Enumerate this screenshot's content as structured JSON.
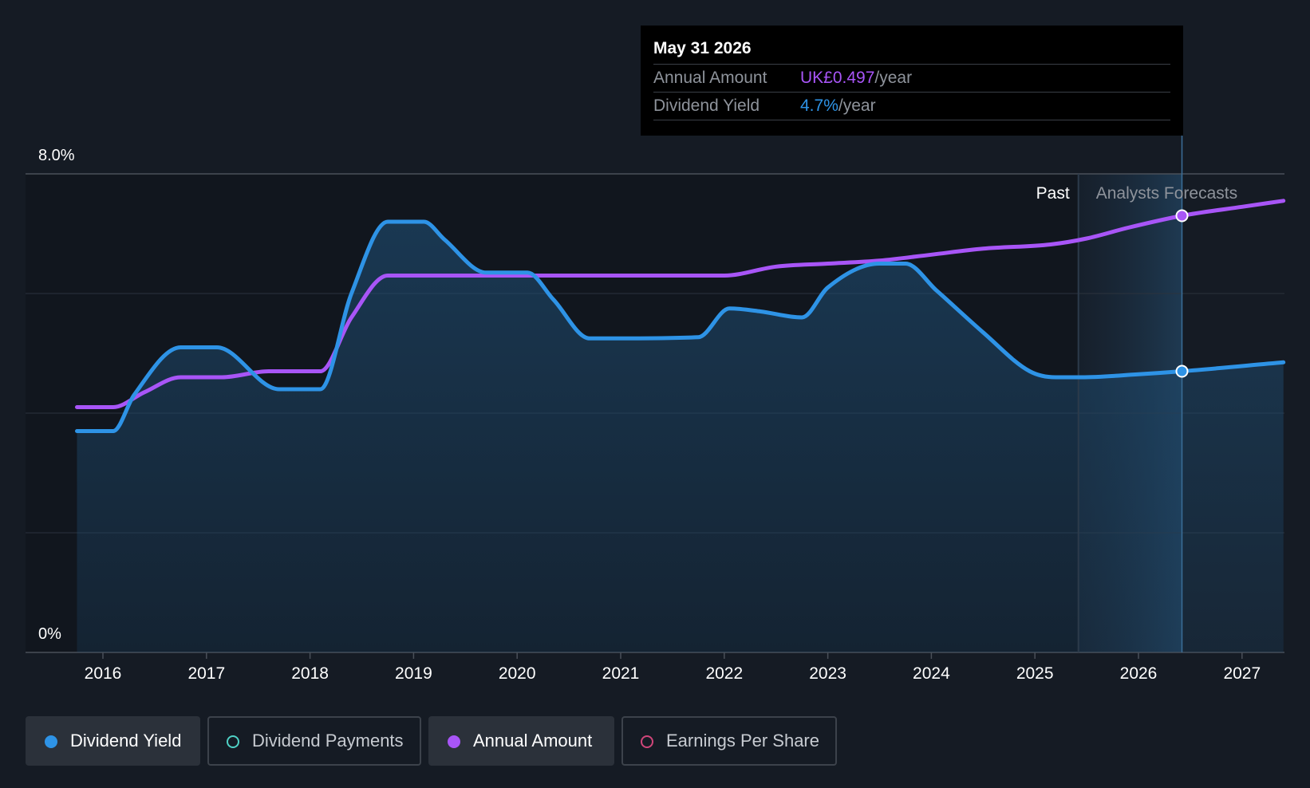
{
  "tooltip": {
    "date": "May 31 2026",
    "rows": [
      {
        "name": "Annual Amount",
        "value": "UK£0.497",
        "unit": "/year",
        "color": "#a855f7"
      },
      {
        "name": "Dividend Yield",
        "value": "4.7%",
        "unit": "/year",
        "color": "#2e93e6"
      }
    ]
  },
  "legend": [
    {
      "label": "Dividend Yield",
      "color": "#2e93e6",
      "filled": true,
      "active": true
    },
    {
      "label": "Dividend Payments",
      "color": "#4fd1c5",
      "filled": false,
      "active": false
    },
    {
      "label": "Annual Amount",
      "color": "#a855f7",
      "filled": true,
      "active": true
    },
    {
      "label": "Earnings Per Share",
      "color": "#d0467a",
      "filled": false,
      "active": false
    }
  ],
  "chart_data": {
    "type": "area",
    "x_tick_labels": [
      "2016",
      "2017",
      "2018",
      "2019",
      "2020",
      "2021",
      "2022",
      "2023",
      "2024",
      "2025",
      "2026",
      "2027"
    ],
    "y_tick_labels": [
      "0%",
      "8.0%"
    ],
    "ylim": [
      0,
      8.0
    ],
    "xlim": [
      2015.74,
      2027.4
    ],
    "grid": true,
    "region_labels": {
      "past": "Past",
      "forecast": "Analysts Forecasts"
    },
    "forecast_start": 2025.42,
    "highlight_x": 2026.42,
    "series": [
      {
        "name": "Dividend Yield",
        "color": "#2e93e6",
        "fill": true,
        "points": [
          [
            2015.75,
            3.7
          ],
          [
            2016.1,
            3.7
          ],
          [
            2016.3,
            4.3
          ],
          [
            2016.75,
            5.1
          ],
          [
            2017.1,
            5.1
          ],
          [
            2017.7,
            4.4
          ],
          [
            2018.1,
            4.4
          ],
          [
            2018.4,
            6.0
          ],
          [
            2018.75,
            7.2
          ],
          [
            2019.1,
            7.2
          ],
          [
            2019.3,
            6.9
          ],
          [
            2019.7,
            6.35
          ],
          [
            2020.1,
            6.35
          ],
          [
            2020.35,
            5.9
          ],
          [
            2020.7,
            5.25
          ],
          [
            2021.0,
            5.25
          ],
          [
            2021.75,
            5.27
          ],
          [
            2022.05,
            5.75
          ],
          [
            2022.35,
            5.7
          ],
          [
            2022.75,
            5.6
          ],
          [
            2023.0,
            6.1
          ],
          [
            2023.5,
            6.5
          ],
          [
            2023.75,
            6.5
          ],
          [
            2024.05,
            6.05
          ],
          [
            2024.5,
            5.35
          ],
          [
            2024.95,
            4.7
          ],
          [
            2025.2,
            4.6
          ],
          [
            2025.45,
            4.6
          ],
          [
            2026.0,
            4.65
          ],
          [
            2026.42,
            4.7
          ],
          [
            2027.4,
            4.85
          ]
        ]
      },
      {
        "name": "Annual Amount",
        "color": "#a855f7",
        "fill": false,
        "points": [
          [
            2015.75,
            4.1
          ],
          [
            2016.1,
            4.1
          ],
          [
            2016.4,
            4.35
          ],
          [
            2016.75,
            4.6
          ],
          [
            2017.15,
            4.6
          ],
          [
            2017.6,
            4.7
          ],
          [
            2018.1,
            4.7
          ],
          [
            2018.4,
            5.6
          ],
          [
            2018.75,
            6.3
          ],
          [
            2019.1,
            6.3
          ],
          [
            2020.0,
            6.3
          ],
          [
            2021.0,
            6.3
          ],
          [
            2022.0,
            6.3
          ],
          [
            2022.5,
            6.45
          ],
          [
            2023.0,
            6.5
          ],
          [
            2023.5,
            6.55
          ],
          [
            2024.0,
            6.65
          ],
          [
            2024.5,
            6.75
          ],
          [
            2025.15,
            6.82
          ],
          [
            2025.5,
            6.92
          ],
          [
            2025.9,
            7.1
          ],
          [
            2026.42,
            7.3
          ],
          [
            2027.0,
            7.45
          ],
          [
            2027.4,
            7.55
          ]
        ]
      }
    ]
  }
}
